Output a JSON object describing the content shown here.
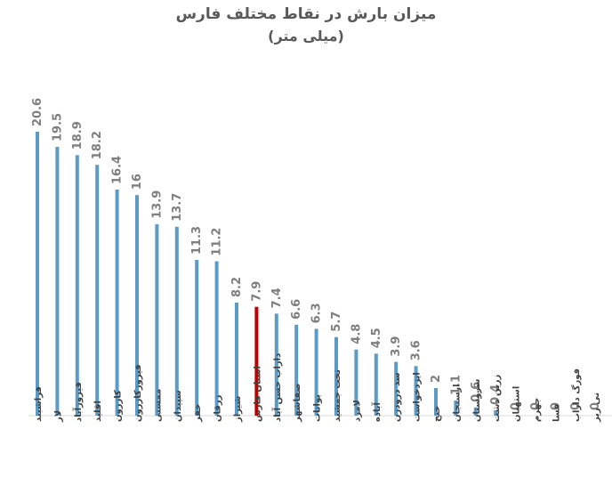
{
  "chart_data": {
    "type": "bar",
    "title": "میزان بارش در نقاط مختلف فارس",
    "subtitle": "(میلی متر)",
    "categories": [
      "فراشبند",
      "لار",
      "فیروزآباد",
      "اقلید",
      "کازرون",
      "فیروزکازرون",
      "ممسنی",
      "سپیدان",
      "خفر",
      "زرقان",
      "شیراز",
      "استان فارس",
      "داراب حسن آباد",
      "صفاشهر",
      "بوانات",
      "تخت جمشید",
      "لامرد",
      "آباده",
      "سد درودزن",
      "ایزدخواست",
      "خنج",
      "ارسنجان",
      "سروستان",
      "زرین دشت",
      "استهبان",
      "جهرم",
      "فسا",
      "فورگ داراب",
      "نی ریز"
    ],
    "values": [
      20.6,
      19.5,
      18.9,
      18.2,
      16.4,
      16,
      13.9,
      13.7,
      11.3,
      11.2,
      8.2,
      7.9,
      7.4,
      6.6,
      6.3,
      5.7,
      4.8,
      4.5,
      3.9,
      3.6,
      2,
      1.1,
      0.6,
      0.4,
      0,
      0,
      0,
      0,
      0
    ],
    "value_labels": [
      "20.6",
      "19.5",
      "18.9",
      "18.2",
      "16.4",
      "16",
      "13.9",
      "13.7",
      "11.3",
      "11.2",
      "8.2",
      "7.9",
      "7.4",
      "6.6",
      "6.3",
      "5.7",
      "4.8",
      "4.5",
      "3.9",
      "3.6",
      "2",
      "1.1",
      "0.6",
      "0.4",
      "0",
      "0",
      "0",
      "0",
      "0"
    ],
    "ylim": [
      0,
      20.6
    ],
    "grid": false,
    "colors": {
      "bar": "#5b9bc5",
      "highlight": "#c00000",
      "value_label": "#7f7f7f"
    },
    "highlight_category": "استان فارس"
  }
}
